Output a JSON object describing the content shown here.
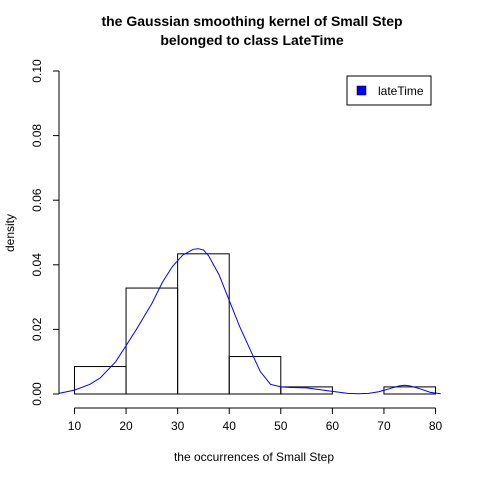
{
  "chart_data": {
    "type": "histogram",
    "title": [
      "the Gaussian smoothing kernel of Small Step",
      "belonged to class LateTime"
    ],
    "xlabel": "the occurrences of Small Step",
    "ylabel": "density",
    "xlim": [
      7,
      83
    ],
    "ylim": [
      0,
      0.1
    ],
    "x_ticks": [
      10,
      20,
      30,
      40,
      50,
      60,
      70,
      80
    ],
    "y_ticks": [
      0.0,
      0.02,
      0.04,
      0.06,
      0.08,
      0.1
    ],
    "y_tick_labels": [
      "0.00",
      "0.02",
      "0.04",
      "0.06",
      "0.08",
      "0.10"
    ],
    "bins": [
      {
        "start": 10,
        "end": 20,
        "density": 0.0085
      },
      {
        "start": 20,
        "end": 30,
        "density": 0.0328
      },
      {
        "start": 30,
        "end": 40,
        "density": 0.0434
      },
      {
        "start": 40,
        "end": 50,
        "density": 0.0116
      },
      {
        "start": 50,
        "end": 60,
        "density": 0.0022
      },
      {
        "start": 60,
        "end": 70,
        "density": 0.0
      },
      {
        "start": 70,
        "end": 80,
        "density": 0.0022
      }
    ],
    "kde_curve": {
      "x": [
        7,
        10,
        13,
        15,
        18,
        20,
        22,
        25,
        27,
        29,
        31,
        33,
        34,
        35,
        36,
        38,
        40,
        42,
        44,
        46,
        48,
        50,
        52,
        55,
        57,
        60,
        63,
        65,
        67,
        69,
        71,
        73,
        74,
        75,
        77,
        79,
        81
      ],
      "y": [
        0.0002,
        0.0012,
        0.003,
        0.005,
        0.01,
        0.015,
        0.02,
        0.028,
        0.0345,
        0.0395,
        0.043,
        0.0448,
        0.045,
        0.0446,
        0.0428,
        0.037,
        0.029,
        0.021,
        0.014,
        0.007,
        0.003,
        0.0022,
        0.002,
        0.0019,
        0.0015,
        0.0008,
        0.0002,
        0.0001,
        0.0002,
        0.0007,
        0.0016,
        0.0025,
        0.0027,
        0.0025,
        0.0016,
        0.0005,
        0.0001
      ],
      "color": "#0000ff"
    },
    "legend": {
      "entries": [
        {
          "label": "lateTime",
          "color": "#0000ff"
        }
      ],
      "position": "top-right"
    },
    "grid": false
  }
}
